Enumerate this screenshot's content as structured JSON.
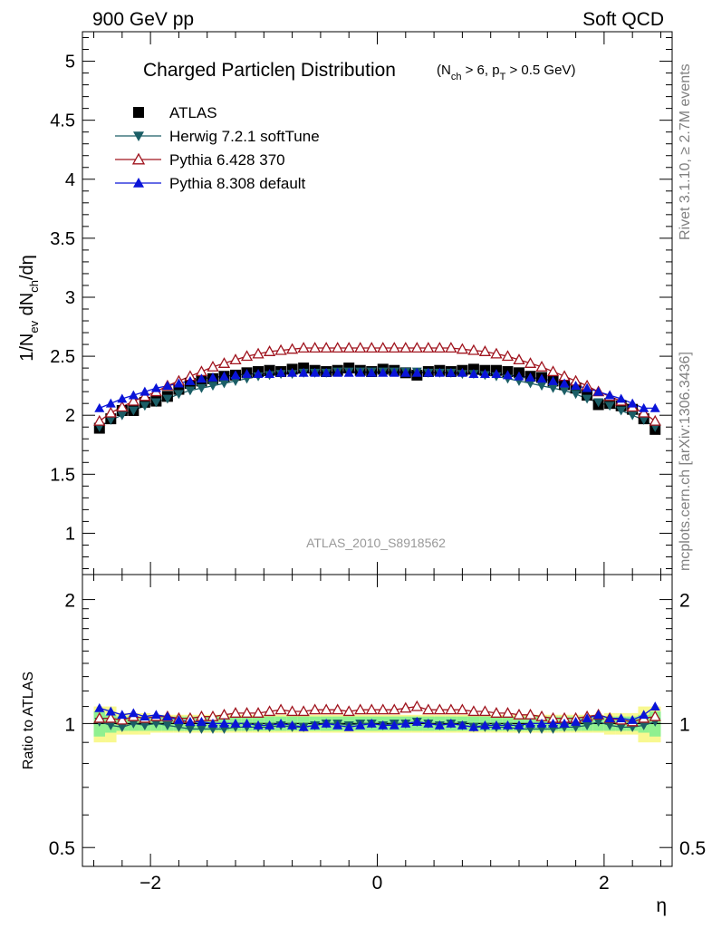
{
  "header": {
    "left": "900 GeV pp",
    "right": "Soft QCD"
  },
  "title": {
    "main": "Charged Particleη Distribution",
    "cut": "(N<sub>ch</sub> > 6, p<sub>T</sub> > 0.5 GeV)"
  },
  "side_labels": {
    "rivet": "Rivet 3.1.10, ≥ 2.7M events",
    "mcplots": "mcplots.cern.ch [arXiv:1306.3436]"
  },
  "analysis_id": "ATLAS_2010_S8918562",
  "legend": [
    {
      "label": "ATLAS",
      "marker": "square",
      "color": "#000000"
    },
    {
      "label": "Herwig 7.2.1 softTune",
      "marker": "triangle-down",
      "color": "#1b5e66"
    },
    {
      "label": "Pythia 6.428 370",
      "marker": "triangle-up-open",
      "color": "#a0141e"
    },
    {
      "label": "Pythia 8.308 default",
      "marker": "triangle-up",
      "color": "#0a14d8"
    }
  ],
  "colors": {
    "data": "#000000",
    "herwig": "#1b5e66",
    "pythia6": "#a0141e",
    "pythia8": "#0a14d8",
    "band_inner": "#90f090",
    "band_outer": "#f8f890"
  },
  "chart_data": [
    {
      "type": "scatter",
      "title": "Charged Particleη Distribution(N_ch > 6, p_T > 0.5 GeV)",
      "ylabel": "1/N<sub>ev</sub> dN<sub>ch</sub>/dη",
      "xlabel": "",
      "xlim": [
        -2.6,
        2.6
      ],
      "ylim": [
        0.65,
        5.25
      ],
      "yticks": [
        1,
        1.5,
        2,
        2.5,
        3,
        3.5,
        4,
        4.5,
        5
      ],
      "ytick_labels": [
        "1",
        "1.5",
        "2",
        "2.5",
        "3",
        "3.5",
        "4",
        "4.5",
        "5"
      ],
      "x": [
        -2.45,
        -2.35,
        -2.25,
        -2.15,
        -2.05,
        -1.95,
        -1.85,
        -1.75,
        -1.65,
        -1.55,
        -1.45,
        -1.35,
        -1.25,
        -1.15,
        -1.05,
        -0.95,
        -0.85,
        -0.75,
        -0.65,
        -0.55,
        -0.45,
        -0.35,
        -0.25,
        -0.15,
        -0.05,
        0.05,
        0.15,
        0.25,
        0.35,
        0.45,
        0.55,
        0.65,
        0.75,
        0.85,
        0.95,
        1.05,
        1.15,
        1.25,
        1.35,
        1.45,
        1.55,
        1.65,
        1.75,
        1.85,
        1.95,
        2.05,
        2.15,
        2.25,
        2.35,
        2.45
      ],
      "series": [
        {
          "name": "ATLAS",
          "values": [
            1.89,
            1.97,
            2.04,
            2.04,
            2.11,
            2.12,
            2.16,
            2.22,
            2.27,
            2.29,
            2.31,
            2.33,
            2.34,
            2.36,
            2.37,
            2.38,
            2.37,
            2.39,
            2.4,
            2.38,
            2.37,
            2.38,
            2.4,
            2.38,
            2.37,
            2.39,
            2.38,
            2.36,
            2.34,
            2.37,
            2.38,
            2.37,
            2.38,
            2.39,
            2.38,
            2.38,
            2.37,
            2.36,
            2.33,
            2.32,
            2.29,
            2.26,
            2.23,
            2.17,
            2.09,
            2.1,
            2.08,
            2.05,
            1.97,
            1.88
          ]
        },
        {
          "name": "Herwig 7.2.1 softTune",
          "values": [
            1.9,
            1.96,
            2.0,
            2.04,
            2.08,
            2.11,
            2.14,
            2.18,
            2.21,
            2.23,
            2.25,
            2.27,
            2.29,
            2.31,
            2.33,
            2.34,
            2.35,
            2.35,
            2.36,
            2.36,
            2.36,
            2.37,
            2.37,
            2.37,
            2.37,
            2.37,
            2.37,
            2.37,
            2.37,
            2.36,
            2.36,
            2.36,
            2.35,
            2.35,
            2.34,
            2.33,
            2.31,
            2.29,
            2.27,
            2.25,
            2.23,
            2.21,
            2.18,
            2.14,
            2.11,
            2.08,
            2.04,
            2.0,
            1.96,
            1.9
          ]
        },
        {
          "name": "Pythia 6.428 370",
          "values": [
            1.95,
            2.02,
            2.07,
            2.12,
            2.16,
            2.2,
            2.25,
            2.29,
            2.33,
            2.37,
            2.41,
            2.44,
            2.47,
            2.5,
            2.52,
            2.54,
            2.55,
            2.56,
            2.57,
            2.57,
            2.57,
            2.57,
            2.57,
            2.57,
            2.57,
            2.57,
            2.57,
            2.57,
            2.57,
            2.57,
            2.57,
            2.57,
            2.56,
            2.55,
            2.54,
            2.52,
            2.5,
            2.47,
            2.44,
            2.41,
            2.37,
            2.33,
            2.29,
            2.25,
            2.2,
            2.16,
            2.12,
            2.07,
            2.02,
            1.95
          ]
        },
        {
          "name": "Pythia 8.308 default",
          "values": [
            2.06,
            2.1,
            2.14,
            2.17,
            2.2,
            2.23,
            2.25,
            2.27,
            2.29,
            2.31,
            2.32,
            2.33,
            2.34,
            2.35,
            2.35,
            2.35,
            2.36,
            2.36,
            2.36,
            2.36,
            2.36,
            2.36,
            2.36,
            2.36,
            2.36,
            2.36,
            2.36,
            2.36,
            2.36,
            2.36,
            2.36,
            2.36,
            2.36,
            2.35,
            2.35,
            2.35,
            2.34,
            2.33,
            2.32,
            2.31,
            2.29,
            2.27,
            2.25,
            2.23,
            2.2,
            2.17,
            2.14,
            2.1,
            2.06,
            2.06
          ]
        }
      ]
    },
    {
      "type": "scatter",
      "title": "",
      "ylabel": "Ratio to ATLAS",
      "xlabel": "η",
      "xlim": [
        -2.6,
        2.6
      ],
      "ylim": [
        0.45,
        2.3
      ],
      "yticks": [
        0.5,
        1,
        2
      ],
      "ytick_labels": [
        "0.5",
        "1",
        "2"
      ],
      "xticks": [
        -2,
        0,
        2
      ],
      "xtick_labels": [
        "−2",
        "0",
        "2"
      ],
      "x": [
        -2.45,
        -2.35,
        -2.25,
        -2.15,
        -2.05,
        -1.95,
        -1.85,
        -1.75,
        -1.65,
        -1.55,
        -1.45,
        -1.35,
        -1.25,
        -1.15,
        -1.05,
        -0.95,
        -0.85,
        -0.75,
        -0.65,
        -0.55,
        -0.45,
        -0.35,
        -0.25,
        -0.15,
        -0.05,
        0.05,
        0.15,
        0.25,
        0.35,
        0.45,
        0.55,
        0.65,
        0.75,
        0.85,
        0.95,
        1.05,
        1.15,
        1.25,
        1.35,
        1.45,
        1.55,
        1.65,
        1.75,
        1.85,
        1.95,
        2.05,
        2.15,
        2.25,
        2.35,
        2.45
      ],
      "band_inner": [
        0.07,
        0.05,
        0.04,
        0.04,
        0.04,
        0.04,
        0.04,
        0.04,
        0.04,
        0.04,
        0.04,
        0.04,
        0.04,
        0.04,
        0.04,
        0.04,
        0.04,
        0.04,
        0.04,
        0.04,
        0.04,
        0.04,
        0.04,
        0.04,
        0.04,
        0.04,
        0.04,
        0.04,
        0.04,
        0.04,
        0.04,
        0.04,
        0.04,
        0.04,
        0.04,
        0.04,
        0.04,
        0.04,
        0.04,
        0.04,
        0.04,
        0.04,
        0.04,
        0.04,
        0.04,
        0.04,
        0.04,
        0.04,
        0.05,
        0.07
      ],
      "band_outer": [
        0.1,
        0.1,
        0.06,
        0.06,
        0.06,
        0.05,
        0.05,
        0.05,
        0.05,
        0.05,
        0.05,
        0.05,
        0.05,
        0.05,
        0.05,
        0.05,
        0.05,
        0.05,
        0.05,
        0.05,
        0.05,
        0.05,
        0.05,
        0.05,
        0.05,
        0.05,
        0.05,
        0.05,
        0.05,
        0.05,
        0.05,
        0.05,
        0.05,
        0.05,
        0.05,
        0.05,
        0.05,
        0.05,
        0.05,
        0.05,
        0.05,
        0.05,
        0.05,
        0.05,
        0.05,
        0.06,
        0.06,
        0.06,
        0.1,
        0.1
      ],
      "series": [
        {
          "name": "Herwig 7.2.1 softTune",
          "values": [
            1.01,
            0.99,
            0.98,
            1.0,
            0.99,
            1.0,
            0.99,
            0.98,
            0.97,
            0.97,
            0.97,
            0.97,
            0.98,
            0.98,
            0.98,
            0.98,
            0.99,
            0.98,
            0.98,
            0.99,
            1.0,
            1.0,
            0.99,
            1.0,
            1.0,
            0.99,
            1.0,
            1.0,
            1.01,
            1.0,
            0.99,
            1.0,
            0.99,
            0.98,
            0.98,
            0.98,
            0.98,
            0.97,
            0.97,
            0.97,
            0.97,
            0.98,
            0.98,
            0.99,
            1.01,
            0.99,
            0.98,
            0.98,
            0.99,
            1.01
          ]
        },
        {
          "name": "Pythia 6.428 370",
          "values": [
            1.03,
            1.03,
            1.02,
            1.04,
            1.03,
            1.04,
            1.04,
            1.03,
            1.03,
            1.04,
            1.04,
            1.05,
            1.06,
            1.06,
            1.06,
            1.07,
            1.08,
            1.07,
            1.07,
            1.08,
            1.08,
            1.08,
            1.07,
            1.08,
            1.08,
            1.08,
            1.08,
            1.09,
            1.1,
            1.08,
            1.08,
            1.08,
            1.08,
            1.07,
            1.07,
            1.06,
            1.06,
            1.05,
            1.05,
            1.04,
            1.03,
            1.03,
            1.03,
            1.04,
            1.05,
            1.03,
            1.02,
            1.01,
            1.03,
            1.04
          ]
        },
        {
          "name": "Pythia 8.308 default",
          "values": [
            1.09,
            1.07,
            1.05,
            1.06,
            1.04,
            1.05,
            1.04,
            1.02,
            1.01,
            1.01,
            1.0,
            1.0,
            1.0,
            1.0,
            0.99,
            0.99,
            1.0,
            0.99,
            0.98,
            0.99,
            1.0,
            0.99,
            0.98,
            0.99,
            1.0,
            0.99,
            0.99,
            1.0,
            1.01,
            1.0,
            0.99,
            1.0,
            0.99,
            0.98,
            0.99,
            0.99,
            0.99,
            0.99,
            1.0,
            1.0,
            1.0,
            1.0,
            1.01,
            1.03,
            1.05,
            1.03,
            1.03,
            1.02,
            1.05,
            1.1
          ]
        }
      ]
    }
  ]
}
